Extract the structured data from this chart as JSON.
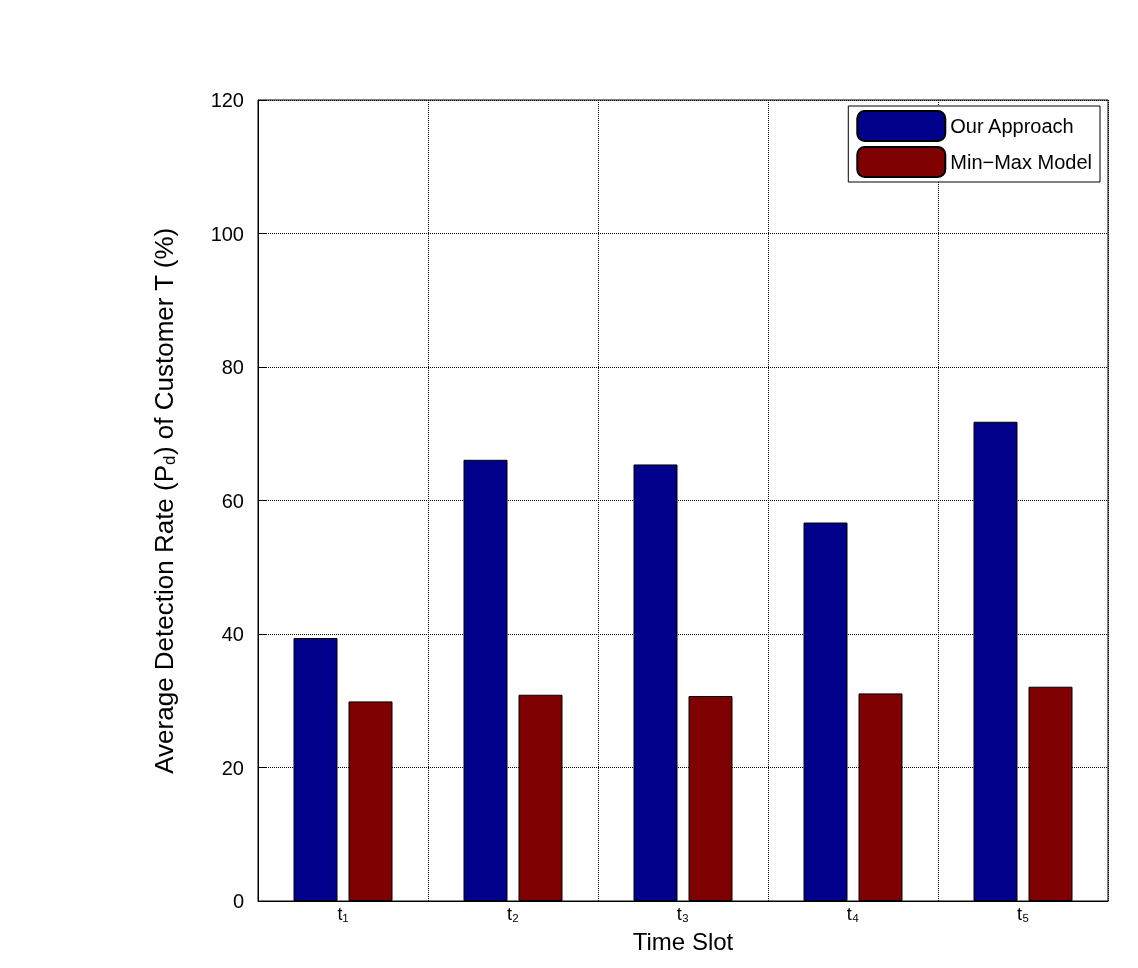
{
  "chart_data": {
    "type": "bar",
    "xlabel": "Time Slot",
    "ylabel": "Average Detection Rate (P$_{d}$) of Customer T (%)",
    "categories": [
      "t₁",
      "t₂",
      "t₃",
      "t₄",
      "t₅"
    ],
    "series": [
      {
        "name": "Our Approach",
        "color": "#00008b",
        "values": [
          39.4,
          66.1,
          65.4,
          56.7,
          71.8
        ]
      },
      {
        "name": "Min−Max Model",
        "color": "#7f0000",
        "values": [
          29.9,
          30.9,
          30.7,
          31.1,
          32.1
        ]
      }
    ],
    "ylim": [
      0,
      120
    ],
    "yticks": [
      0,
      20,
      40,
      60,
      80,
      100,
      120
    ],
    "grid": true,
    "legend": "top right"
  }
}
